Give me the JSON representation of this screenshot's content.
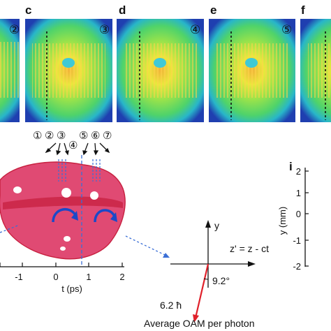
{
  "panel_letters": [
    "c",
    "d",
    "e",
    "f",
    "i"
  ],
  "frame_badges": [
    "②",
    "③",
    "④",
    "⑤"
  ],
  "slice_markers": [
    "①",
    "②",
    "③",
    "④",
    "⑤",
    "⑥",
    "⑦"
  ],
  "t_axis": {
    "title": "t (ps)",
    "ticks": [
      "-1",
      "0",
      "1",
      "2"
    ]
  },
  "coords": {
    "y_label": "y",
    "z_label": "z' = z - ct",
    "angle": "9.2°"
  },
  "oam": {
    "value": "6.2 ħ",
    "caption": "Average OAM per photon"
  },
  "y_axis": {
    "title": "y (mm)",
    "ticks": [
      "2",
      "1",
      "0",
      "-1",
      "-2"
    ]
  },
  "colors": {
    "surface": "#e04a73",
    "surface_dark": "#c7203f",
    "guide": "#3b6fd6",
    "arrow_red": "#e0202a"
  }
}
